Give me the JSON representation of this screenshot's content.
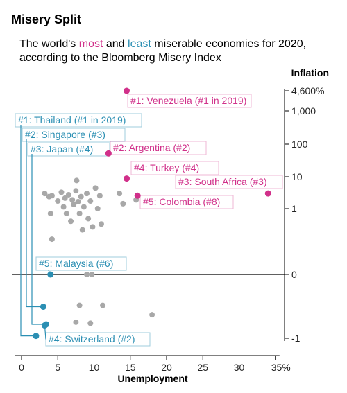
{
  "header": {
    "title": "Misery Split",
    "subtitle_pre": "The world's ",
    "subtitle_most": "most",
    "subtitle_mid": " and ",
    "subtitle_least": "least",
    "subtitle_post": " miserable economies for 2020, according to the Bloomberg Misery Index"
  },
  "colors": {
    "most": "#d1308a",
    "least": "#2b8fb3",
    "other": "#a8a8a8",
    "axis": "#000000",
    "tick_text": "#222222"
  },
  "chart_data": {
    "type": "scatter",
    "title": "Misery Split",
    "xlabel": "Unemployment",
    "ylabel": "Inflation",
    "xlim": [
      0,
      35
    ],
    "x_ticks": [
      0,
      5,
      10,
      15,
      20,
      25,
      30,
      35
    ],
    "x_tick_labels": [
      "0",
      "5",
      "10",
      "15",
      "20",
      "25",
      "30",
      "35%"
    ],
    "y_scale": "symlog",
    "y_ticks": [
      4600,
      1000,
      100,
      10,
      1,
      0,
      -1
    ],
    "y_tick_labels": [
      "4,600%",
      "1,000",
      "100",
      "10",
      "1",
      "0",
      "-1"
    ],
    "grid": false,
    "most_miserable": [
      {
        "label": "#1: Venezuela (#1 in 2019)",
        "x": 14.5,
        "y": 4600
      },
      {
        "label": "#2: Argentina (#2)",
        "x": 12.0,
        "y": 53
      },
      {
        "label": "#3: South Africa (#3)",
        "x": 34.0,
        "y": 3.5
      },
      {
        "label": "#4: Turkey (#4)",
        "x": 14.5,
        "y": 9
      },
      {
        "label": "#5: Colombia (#8)",
        "x": 16.0,
        "y": 3
      }
    ],
    "least_miserable": [
      {
        "label": "#1: Thailand (#1 in 2019)",
        "x": 2.0,
        "y": -0.95
      },
      {
        "label": "#2: Singapore (#3)",
        "x": 3.0,
        "y": -0.42
      },
      {
        "label": "#3: Japan (#4)",
        "x": 3.4,
        "y": -0.72
      },
      {
        "label": "#4: Switzerland (#2)",
        "x": 3.2,
        "y": -0.74
      },
      {
        "label": "#5: Malaysia (#6)",
        "x": 4.0,
        "y": 0.0
      }
    ],
    "other_countries": [
      {
        "x": 3.2,
        "y": 3.5
      },
      {
        "x": 3.8,
        "y": 2.8
      },
      {
        "x": 4.2,
        "y": 3.0
      },
      {
        "x": 4.0,
        "y": 0.9
      },
      {
        "x": 4.2,
        "y": 0.45
      },
      {
        "x": 5.0,
        "y": 2.0
      },
      {
        "x": 5.5,
        "y": 3.8
      },
      {
        "x": 5.8,
        "y": 1.2
      },
      {
        "x": 6.0,
        "y": 2.5
      },
      {
        "x": 6.2,
        "y": 0.9
      },
      {
        "x": 6.5,
        "y": 3.2
      },
      {
        "x": 6.8,
        "y": 0.75
      },
      {
        "x": 7.0,
        "y": 2.2
      },
      {
        "x": 7.2,
        "y": 1.5
      },
      {
        "x": 7.5,
        "y": 4.2
      },
      {
        "x": 7.6,
        "y": 8.0
      },
      {
        "x": 7.8,
        "y": 1.9
      },
      {
        "x": 8.0,
        "y": 0.9
      },
      {
        "x": 8.2,
        "y": 2.8
      },
      {
        "x": 8.4,
        "y": 0.6
      },
      {
        "x": 8.6,
        "y": 1.2
      },
      {
        "x": 9.0,
        "y": 3.5
      },
      {
        "x": 9.2,
        "y": 0.8
      },
      {
        "x": 9.5,
        "y": 2.0
      },
      {
        "x": 9.8,
        "y": 0.65
      },
      {
        "x": 10.2,
        "y": 5.0
      },
      {
        "x": 10.5,
        "y": 1.0
      },
      {
        "x": 10.8,
        "y": 3.0
      },
      {
        "x": 11.0,
        "y": 0.7
      },
      {
        "x": 14.0,
        "y": 1.6
      },
      {
        "x": 13.5,
        "y": 3.5
      },
      {
        "x": 15.8,
        "y": 2.2
      },
      {
        "x": 9.0,
        "y": 0.0
      },
      {
        "x": 9.7,
        "y": 0.0
      },
      {
        "x": 8.0,
        "y": -0.4
      },
      {
        "x": 11.2,
        "y": -0.4
      },
      {
        "x": 18.0,
        "y": -0.55
      },
      {
        "x": 7.5,
        "y": -0.68
      },
      {
        "x": 9.5,
        "y": -0.7
      }
    ]
  }
}
